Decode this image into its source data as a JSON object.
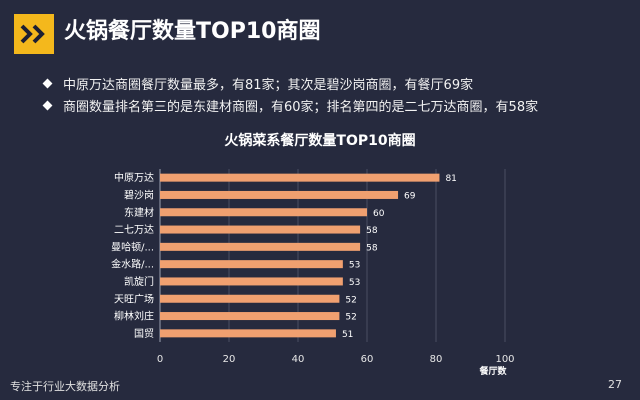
{
  "header": {
    "title": "火锅餐厅数量TOP10商圈",
    "accent_color": "#f4b81c",
    "icon": "double-chevron-right-icon"
  },
  "bullets": [
    "中原万达商圈餐厅数量最多，有81家；其次是碧沙岗商圈，有餐厅69家",
    "商圈数量排名第三的是东建材商圈，有60家；排名第四的是二七万达商圈，有58家"
  ],
  "chart_data": {
    "type": "bar",
    "orientation": "horizontal",
    "title": "火锅菜系餐厅数量TOP10商圈",
    "xlabel": "餐厅数",
    "ylabel": "",
    "xlim": [
      0,
      100
    ],
    "xticks": [
      0,
      20,
      40,
      60,
      80,
      100
    ],
    "grid": true,
    "bar_color": "#f0a070",
    "categories": [
      "中原万达",
      "碧沙岗",
      "东建材",
      "二七万达",
      "曼哈顿/...",
      "金水路/...",
      "凯旋门",
      "天旺广场",
      "柳林刘庄",
      "国贸"
    ],
    "values": [
      81,
      69,
      60,
      58,
      58,
      53,
      53,
      52,
      52,
      51
    ]
  },
  "footer": {
    "left": "专注于行业大数据分析",
    "page": "27"
  }
}
